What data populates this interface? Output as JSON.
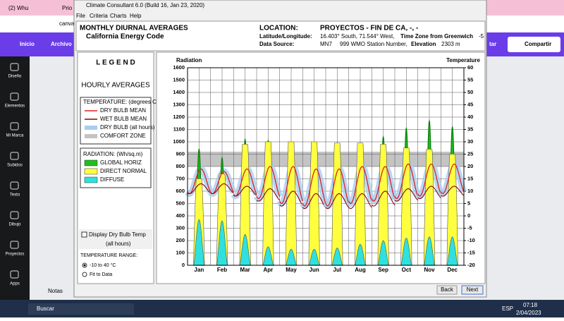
{
  "browser": {
    "tabs": [
      "(2) Whu",
      "Prio"
    ],
    "url": "canva",
    "toolbar": [
      "Inicio",
      "Archivo"
    ],
    "share": "Compartir",
    "partial": "tar"
  },
  "sidebar": [
    "Diseño",
    "Elementos",
    "Mi Marca",
    "Subidos",
    "Texto",
    "Dibujo",
    "Proyectos",
    "Apps"
  ],
  "notes": "Notas",
  "taskbar": {
    "search": "Buscar",
    "lang": "ESP",
    "time": "07:18",
    "date": "2/04/2023"
  },
  "window": {
    "title": "Climate Consultant 6.0 (Build 16, Jan 23, 2020)",
    "menu": [
      "File",
      "Criteria",
      "Charts",
      "Help"
    ],
    "header": {
      "title": "MONTHLY DIURNAL AVERAGES",
      "subtitle": "California Energy Code",
      "location_label": "LOCATION:",
      "location": "PROYECTOS - FIN DE CA, -, -",
      "latlon_label": "Latitude/Longitude:",
      "latlon": "16.403° South, 71.544° West,",
      "tz_label": "Time Zone from Greenwich",
      "tz": "-5",
      "source_label": "Data Source:",
      "source": "MN7",
      "station": "999 WMO Station Number,",
      "elev_label": "Elevation",
      "elev": "2303 m"
    },
    "legend": {
      "title": "L E G E N D",
      "subtitle": "HOURLY AVERAGES",
      "temp_heading": "TEMPERATURE: (degrees C)",
      "temp_items": [
        "DRY BULB MEAN",
        "WET BULB MEAN",
        "DRY BULB (all hours)",
        "COMFORT ZONE"
      ],
      "rad_heading": "RADIATION: (Wh/sq.m)"
    },
    "options": {
      "checkbox": "Display Dry Bulb Temp",
      "checkbox_sub": "(all hours)",
      "range_heading": "TEMPERATURE RANGE:",
      "range_options": [
        "-10 to 40 °C",
        "Fit to Data"
      ]
    },
    "buttons": [
      "Back",
      "Next"
    ]
  },
  "chart": {
    "type": "diurnal",
    "y_label": "Radiation",
    "y2_label": "Temperature",
    "ylim": [
      0,
      1600
    ],
    "yticks": [
      0,
      100,
      200,
      300,
      400,
      500,
      600,
      700,
      800,
      900,
      1000,
      1100,
      1200,
      1300,
      1400,
      1500,
      1600
    ],
    "y2lim": [
      -20,
      60
    ],
    "y2ticks": [
      -20,
      -15,
      -10,
      -5,
      0,
      5,
      10,
      15,
      20,
      25,
      30,
      35,
      40,
      45,
      50,
      55,
      60
    ],
    "categories": [
      "Jan",
      "Feb",
      "Mar",
      "Apr",
      "May",
      "Jun",
      "Jul",
      "Aug",
      "Sep",
      "Oct",
      "Nov",
      "Dec"
    ],
    "series": [
      {
        "name": "GLOBAL HORIZ",
        "color": "#1fbf1f",
        "values": [
          940,
          870,
          1020,
          1010,
          950,
          920,
          940,
          960,
          1040,
          1110,
          1170,
          1120
        ]
      },
      {
        "name": "DIRECT NORMAL",
        "color": "#ffff40",
        "values": [
          700,
          740,
          980,
          1000,
          1000,
          1000,
          990,
          990,
          980,
          950,
          940,
          900
        ]
      },
      {
        "name": "DIFFUSE",
        "color": "#2fe0e0",
        "values": [
          370,
          360,
          250,
          150,
          130,
          130,
          140,
          170,
          200,
          220,
          230,
          230
        ]
      }
    ],
    "comfort_zone": [
      20,
      26
    ],
    "comfort_color": "#c4c4c4",
    "dry_bulb_color": "#e02020",
    "wet_bulb_color": "#8b0000",
    "dry_all_color": "#a8cdf0",
    "dry_bulb_max": [
      19,
      18,
      19,
      20,
      20,
      19,
      19,
      20,
      20,
      21,
      21,
      21
    ],
    "dry_bulb_min": [
      9,
      9,
      8,
      7,
      5,
      4,
      4,
      5,
      6,
      7,
      8,
      9
    ],
    "wet_bulb_max": [
      13,
      13,
      12,
      11,
      10,
      9,
      9,
      9,
      10,
      11,
      12,
      12
    ],
    "wet_bulb_min": [
      9,
      9,
      8,
      6,
      4,
      3,
      3,
      3,
      4,
      6,
      7,
      8
    ]
  }
}
